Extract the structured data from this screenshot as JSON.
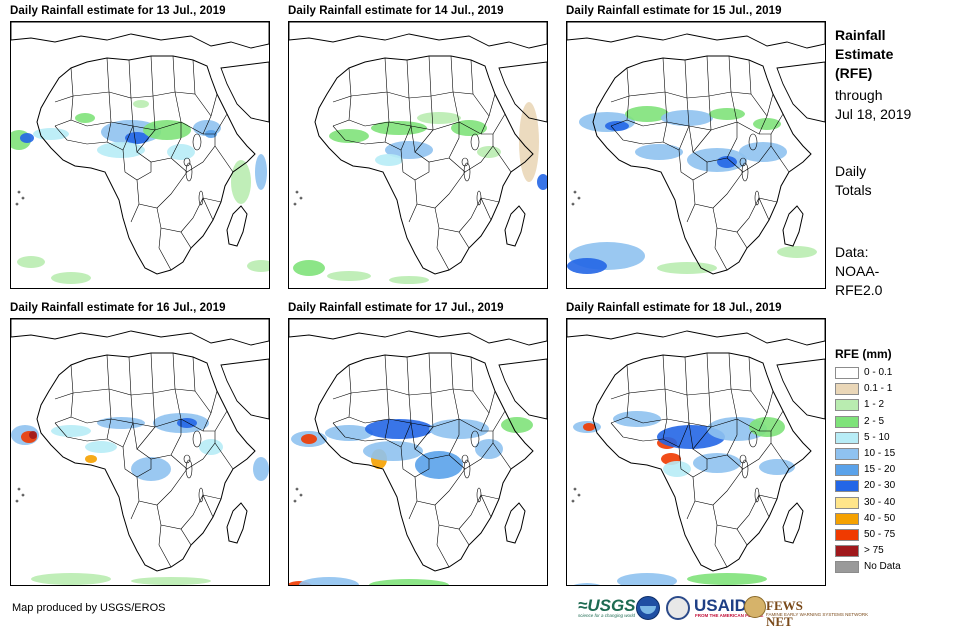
{
  "panels": [
    {
      "title": "Daily Rainfall estimate for 13 Jul., 2019"
    },
    {
      "title": "Daily Rainfall estimate for 14 Jul., 2019"
    },
    {
      "title": "Daily Rainfall estimate for 15 Jul., 2019"
    },
    {
      "title": "Daily Rainfall estimate for 16 Jul., 2019"
    },
    {
      "title": "Daily Rainfall estimate for 17 Jul., 2019"
    },
    {
      "title": "Daily Rainfall estimate for 18 Jul., 2019"
    }
  ],
  "side": {
    "title_lines": [
      "Rainfall",
      "Estimate",
      "(RFE)"
    ],
    "through_lines": [
      "through",
      "Jul 18, 2019"
    ],
    "totals_lines": [
      "Daily",
      "Totals"
    ],
    "data_lines": [
      "Data:",
      "NOAA-",
      "RFE2.0"
    ]
  },
  "legend": {
    "title": "RFE (mm)",
    "items": [
      {
        "label": "0 - 0.1",
        "color": "#ffffff"
      },
      {
        "label": "0.1 - 1",
        "color": "#ead7b8"
      },
      {
        "label": "1 - 2",
        "color": "#b9ecb0"
      },
      {
        "label": "2 - 5",
        "color": "#7fe27a"
      },
      {
        "label": "5 - 10",
        "color": "#b7ecf6"
      },
      {
        "label": "10 - 15",
        "color": "#8fc2f0"
      },
      {
        "label": "15 - 20",
        "color": "#5aa2ea"
      },
      {
        "label": "20 - 30",
        "color": "#2366e6"
      },
      {
        "label": "30 - 40",
        "color": "#ffe58a"
      },
      {
        "label": "40 - 50",
        "color": "#f5a100"
      },
      {
        "label": "50 - 75",
        "color": "#f03a00"
      },
      {
        "label": "> 75",
        "color": "#a0191c"
      },
      {
        "label": "No Data",
        "color": "#9a9a9a"
      }
    ]
  },
  "credit": "Map produced by USGS/EROS",
  "logos": {
    "usgs": "≈USGS",
    "usgs_tagline": "science for a changing world",
    "usaid": "USAID",
    "usaid_tagline": "FROM THE AMERICAN PEOPLE",
    "fews": "FEWS NET",
    "fews_tagline": "FAMINE EARLY WARNING SYSTEMS NETWORK"
  }
}
